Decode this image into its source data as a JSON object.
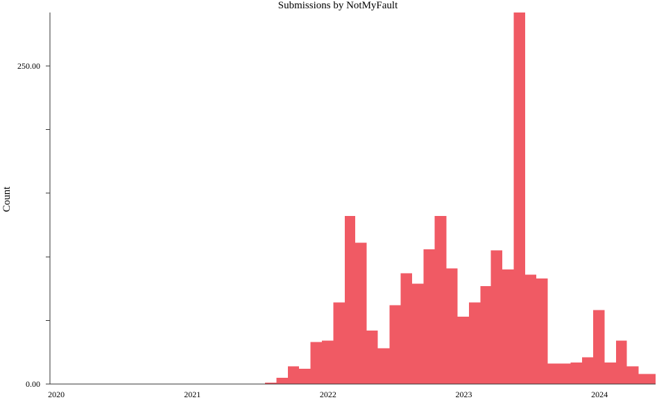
{
  "chart_data": {
    "type": "bar",
    "title": "Submissions by NotMyFault",
    "xlabel": "",
    "ylabel": "Count",
    "bar_color": "#f05a64",
    "x_range": [
      "2019-12-15",
      "2024-05-31"
    ],
    "ylim": [
      0,
      292
    ],
    "y_ticks": [
      {
        "value": 0,
        "label": "0.00"
      },
      {
        "value": 50,
        "label": ""
      },
      {
        "value": 100,
        "label": ""
      },
      {
        "value": 150,
        "label": ""
      },
      {
        "value": 200,
        "label": ""
      },
      {
        "value": 250,
        "label": "250.00"
      }
    ],
    "x_ticks": [
      {
        "value": "2020-01-01",
        "label": "2020"
      },
      {
        "value": "2021-01-01",
        "label": "2021"
      },
      {
        "value": "2022-01-01",
        "label": "2022"
      },
      {
        "value": "2023-01-01",
        "label": "2023"
      },
      {
        "value": "2024-01-01",
        "label": "2024"
      }
    ],
    "bin_starts": [
      "2021-07-15",
      "2021-08-15",
      "2021-09-15",
      "2021-10-15",
      "2021-11-15",
      "2021-12-15",
      "2022-01-15",
      "2022-02-15",
      "2022-03-15",
      "2022-04-15",
      "2022-05-15",
      "2022-06-15",
      "2022-07-15",
      "2022-08-15",
      "2022-09-15",
      "2022-10-15",
      "2022-11-15",
      "2022-12-15",
      "2023-01-15",
      "2023-02-15",
      "2023-03-15",
      "2023-04-15",
      "2023-05-15",
      "2023-06-15",
      "2023-07-15",
      "2023-08-15",
      "2023-09-15",
      "2023-10-15",
      "2023-11-15",
      "2023-12-15",
      "2024-01-15",
      "2024-02-15",
      "2024-03-15",
      "2024-04-15",
      "2024-05-15"
    ],
    "bin_end": "2024-06-15",
    "values": [
      1,
      5,
      14,
      12,
      33,
      34,
      64,
      132,
      111,
      42,
      28,
      62,
      87,
      79,
      106,
      132,
      91,
      53,
      64,
      77,
      105,
      90,
      293,
      86,
      83,
      16,
      16,
      17,
      21,
      58,
      17,
      34,
      14,
      8,
      8
    ]
  }
}
